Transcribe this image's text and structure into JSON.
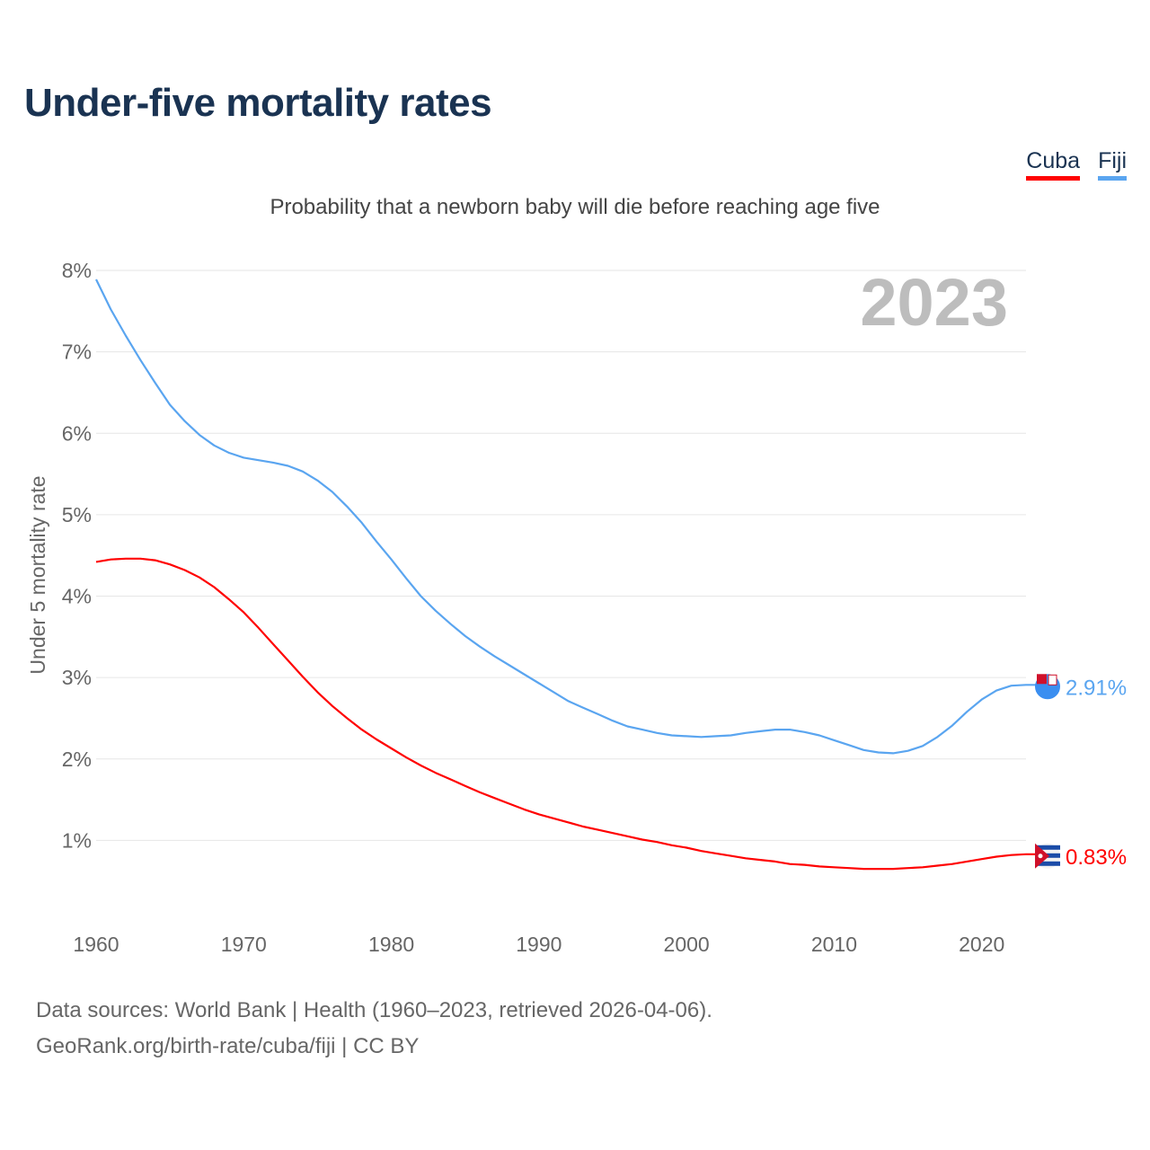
{
  "title": "Under-five mortality rates",
  "subtitle": "Probability that a newborn baby will die before reaching age five",
  "footer": {
    "line1": "Data sources: World Bank | Health (1960–2023, retrieved 2026-04-06).",
    "line2": "GeoRank.org/birth-rate/cuba/fiji | CC BY"
  },
  "chart_data": {
    "type": "line",
    "title": "Under-five mortality rates",
    "xlabel": "",
    "ylabel": "Under 5 mortality rate",
    "year_label": "2023",
    "xlim": [
      1960,
      2023
    ],
    "ylim": [
      0,
      8
    ],
    "x_ticks": [
      1960,
      1970,
      1980,
      1990,
      2000,
      2010,
      2020
    ],
    "y_ticks": [
      {
        "v": 1,
        "label": "1%"
      },
      {
        "v": 2,
        "label": "2%"
      },
      {
        "v": 3,
        "label": "3%"
      },
      {
        "v": 4,
        "label": "4%"
      },
      {
        "v": 5,
        "label": "5%"
      },
      {
        "v": 6,
        "label": "6%"
      },
      {
        "v": 7,
        "label": "7%"
      },
      {
        "v": 8,
        "label": "8%"
      }
    ],
    "legend_position": "top-right",
    "x_start": 1960,
    "series": [
      {
        "name": "Cuba",
        "color": "#ff0000",
        "end_label": "0.83%",
        "flag": "cuba-flag",
        "values": [
          4.42,
          4.45,
          4.46,
          4.46,
          4.44,
          4.39,
          4.32,
          4.23,
          4.11,
          3.96,
          3.8,
          3.61,
          3.41,
          3.21,
          3.01,
          2.82,
          2.65,
          2.5,
          2.36,
          2.24,
          2.13,
          2.02,
          1.92,
          1.83,
          1.75,
          1.67,
          1.59,
          1.52,
          1.45,
          1.38,
          1.32,
          1.27,
          1.22,
          1.17,
          1.13,
          1.09,
          1.05,
          1.01,
          0.98,
          0.94,
          0.91,
          0.87,
          0.84,
          0.81,
          0.78,
          0.76,
          0.74,
          0.71,
          0.7,
          0.68,
          0.67,
          0.66,
          0.65,
          0.65,
          0.65,
          0.66,
          0.67,
          0.69,
          0.71,
          0.74,
          0.77,
          0.8,
          0.82,
          0.83
        ]
      },
      {
        "name": "Fiji",
        "color": "#5aa5f0",
        "end_label": "2.91%",
        "flag": "fiji-flag",
        "values": [
          7.89,
          7.52,
          7.2,
          6.9,
          6.62,
          6.35,
          6.15,
          5.98,
          5.85,
          5.76,
          5.7,
          5.67,
          5.64,
          5.6,
          5.53,
          5.42,
          5.28,
          5.1,
          4.9,
          4.67,
          4.45,
          4.22,
          4.0,
          3.82,
          3.66,
          3.51,
          3.38,
          3.26,
          3.15,
          3.04,
          2.93,
          2.82,
          2.71,
          2.63,
          2.55,
          2.47,
          2.4,
          2.36,
          2.32,
          2.29,
          2.28,
          2.27,
          2.28,
          2.29,
          2.32,
          2.34,
          2.36,
          2.36,
          2.33,
          2.29,
          2.23,
          2.17,
          2.11,
          2.08,
          2.07,
          2.1,
          2.16,
          2.27,
          2.41,
          2.58,
          2.73,
          2.84,
          2.9,
          2.91
        ]
      }
    ]
  }
}
